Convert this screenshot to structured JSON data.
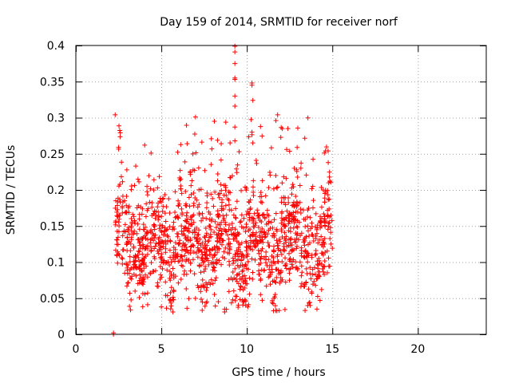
{
  "chart_data": {
    "type": "scatter",
    "title": "Day 159 of 2014, SRMTID for receiver norf",
    "xlabel": "GPS time / hours",
    "ylabel": "SRMTID / TECUs",
    "xlim": [
      0,
      24
    ],
    "ylim": [
      0,
      0.4
    ],
    "grid": true,
    "xticks": [
      0,
      5,
      10,
      15,
      20
    ],
    "xtick_labels": [
      "0",
      "5",
      "10",
      "15",
      "20"
    ],
    "yticks": [
      0,
      0.05,
      0.1,
      0.15,
      0.2,
      0.25,
      0.3,
      0.35,
      0.4
    ],
    "ytick_labels": [
      "0",
      "0.05",
      "0.1",
      "0.15",
      "0.2",
      "0.25",
      "0.3",
      "0.35",
      "0.4"
    ],
    "marker": "+",
    "color": "#ff0000",
    "series": [
      {
        "name": "SRMTID",
        "x_range": [
          2.3,
          15.0
        ],
        "outliers": [
          {
            "x": 2.3,
            "y": 0.304
          },
          {
            "x": 2.2,
            "y": 0.0
          },
          {
            "x": 2.2,
            "y": 0.002
          },
          {
            "x": 2.5,
            "y": 0.259
          },
          {
            "x": 4.4,
            "y": 0.251
          },
          {
            "x": 6.1,
            "y": 0.227
          },
          {
            "x": 7.0,
            "y": 0.301
          },
          {
            "x": 8.1,
            "y": 0.295
          },
          {
            "x": 8.5,
            "y": 0.264
          },
          {
            "x": 9.3,
            "y": 0.399
          },
          {
            "x": 9.3,
            "y": 0.391
          },
          {
            "x": 9.3,
            "y": 0.375
          },
          {
            "x": 9.3,
            "y": 0.355
          },
          {
            "x": 9.3,
            "y": 0.353
          },
          {
            "x": 9.3,
            "y": 0.33
          },
          {
            "x": 9.3,
            "y": 0.316
          },
          {
            "x": 9.3,
            "y": 0.287
          },
          {
            "x": 9.3,
            "y": 0.268
          },
          {
            "x": 10.3,
            "y": 0.348
          },
          {
            "x": 10.3,
            "y": 0.345
          },
          {
            "x": 10.35,
            "y": 0.324
          },
          {
            "x": 10.3,
            "y": 0.28
          },
          {
            "x": 10.35,
            "y": 0.265
          },
          {
            "x": 11.8,
            "y": 0.304
          },
          {
            "x": 11.7,
            "y": 0.296
          },
          {
            "x": 12.4,
            "y": 0.285
          },
          {
            "x": 14.6,
            "y": 0.254
          },
          {
            "x": 6.5,
            "y": 0.036
          },
          {
            "x": 8.7,
            "y": 0.031
          },
          {
            "x": 8.7,
            "y": 0.035
          },
          {
            "x": 10.1,
            "y": 0.041
          },
          {
            "x": 10.8,
            "y": 0.055
          },
          {
            "x": 14.1,
            "y": 0.035
          },
          {
            "x": 4.2,
            "y": 0.041
          },
          {
            "x": 5.0,
            "y": 0.038
          }
        ]
      }
    ]
  }
}
